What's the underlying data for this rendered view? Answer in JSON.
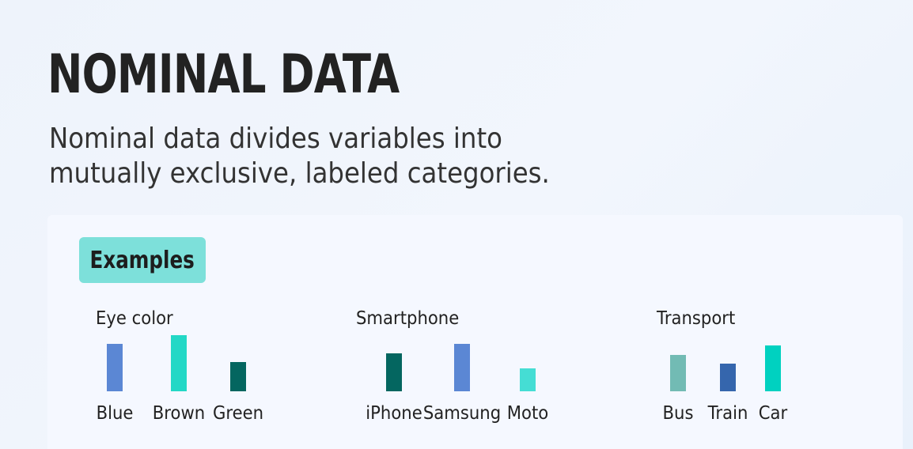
{
  "header": {
    "title": "NOMINAL DATA",
    "subtitle": "Nominal data divides variables into mutually exclusive, labeled categories."
  },
  "examples": {
    "badge_label": "Examples",
    "groups": [
      {
        "title": "Eye color",
        "items": [
          {
            "label": "Blue",
            "level": 0.85,
            "color": "#5b87d4"
          },
          {
            "label": "Brown",
            "level": 1.0,
            "color": "#23d8c6"
          },
          {
            "label": "Green",
            "level": 0.52,
            "color": "#046660"
          }
        ]
      },
      {
        "title": "Smartphone",
        "items": [
          {
            "label": "iPhone",
            "level": 0.68,
            "color": "#046660"
          },
          {
            "label": "Samsung",
            "level": 0.85,
            "color": "#5b87d4"
          },
          {
            "label": "Moto",
            "level": 0.41,
            "color": "#45ddd4"
          }
        ]
      },
      {
        "title": "Transport",
        "items": [
          {
            "label": "Bus",
            "level": 0.65,
            "color": "#72bbb4"
          },
          {
            "label": "Train",
            "level": 0.49,
            "color": "#3566ad"
          },
          {
            "label": "Car",
            "level": 0.82,
            "color": "#00d1c0"
          }
        ]
      }
    ]
  }
}
